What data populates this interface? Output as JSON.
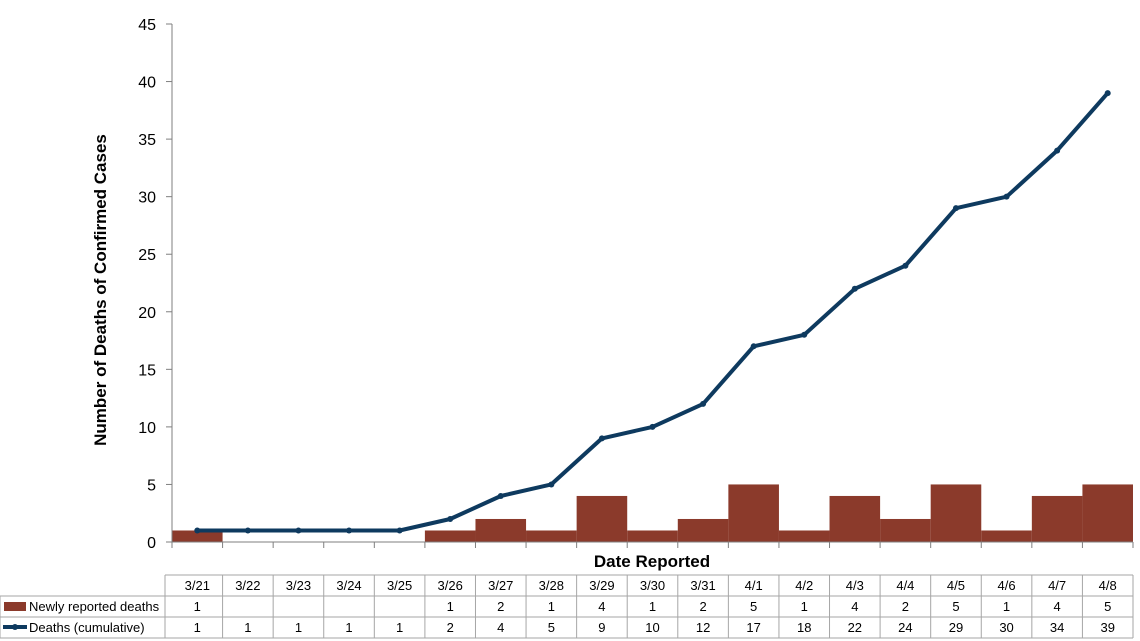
{
  "chart_data": {
    "type": "bar",
    "title": "",
    "ylabel": "Number of Deaths of Confirmed Cases",
    "xlabel": "Date Reported",
    "ylim": [
      0,
      45
    ],
    "yticks": [
      0,
      5,
      10,
      15,
      20,
      25,
      30,
      35,
      40,
      45
    ],
    "grid": false,
    "legend_position": "data table rows below chart",
    "categories": [
      "3/21",
      "3/22",
      "3/23",
      "3/24",
      "3/25",
      "3/26",
      "3/27",
      "3/28",
      "3/29",
      "3/30",
      "3/31",
      "4/1",
      "4/2",
      "4/3",
      "4/4",
      "4/5",
      "4/6",
      "4/7",
      "4/8"
    ],
    "series": [
      {
        "name": "Newly reported deaths",
        "type": "bar",
        "color": "#8B3A2B",
        "values": [
          1,
          null,
          null,
          null,
          null,
          1,
          2,
          1,
          4,
          1,
          2,
          5,
          1,
          4,
          2,
          5,
          1,
          4,
          5
        ]
      },
      {
        "name": "Deaths (cumulative)",
        "type": "line",
        "color": "#0E3A5F",
        "values": [
          1,
          1,
          1,
          1,
          1,
          2,
          4,
          5,
          9,
          10,
          12,
          17,
          18,
          22,
          24,
          29,
          30,
          34,
          39
        ]
      }
    ]
  }
}
